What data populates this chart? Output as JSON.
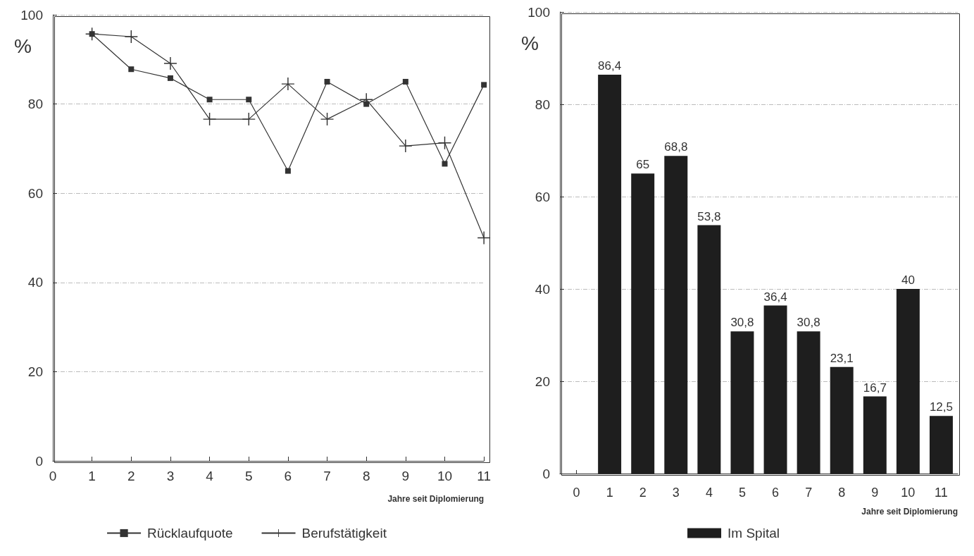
{
  "chart_data": [
    {
      "type": "line",
      "ylabel": "%",
      "xlabel": "Jahre seit Diplomierung",
      "x": [
        1,
        2,
        3,
        4,
        5,
        6,
        7,
        8,
        9,
        10,
        11
      ],
      "series": [
        {
          "name": "Rücklaufquote",
          "color": "#333333",
          "marker": "square",
          "values": [
            95.7,
            87.8,
            85.8,
            81.0,
            81.0,
            65.0,
            85.0,
            80.0,
            85.0,
            66.6,
            84.3
          ]
        },
        {
          "name": "Berufstätigkeit",
          "color": "#333333",
          "marker": "cross",
          "values": [
            95.7,
            95.1,
            89.1,
            76.6,
            76.6,
            84.5,
            76.6,
            81.0,
            70.6,
            71.3,
            50.0
          ]
        }
      ],
      "xlim": [
        0,
        11
      ],
      "xticks": [
        0,
        1,
        2,
        3,
        4,
        5,
        6,
        7,
        8,
        9,
        10,
        11
      ],
      "ylim": [
        0,
        100
      ],
      "yticks": [
        0,
        20,
        40,
        60,
        80,
        100
      ],
      "grid": "y",
      "legend": "bottom",
      "line_style": "solid"
    },
    {
      "type": "bar",
      "ylabel": "%",
      "xlabel": "Jahre seit Diplomierung",
      "categories": [
        "0",
        "1",
        "2",
        "3",
        "4",
        "5",
        "6",
        "7",
        "8",
        "9",
        "10",
        "11"
      ],
      "series": [
        {
          "name": "Im Spital",
          "color": "#1e1e1e",
          "values": [
            null,
            86.4,
            65,
            68.8,
            53.8,
            30.8,
            36.4,
            30.8,
            23.1,
            16.7,
            40,
            12.5
          ],
          "value_labels": [
            null,
            "86,4",
            "65",
            "68,8",
            "53,8",
            "30,8",
            "36,4",
            "30,8",
            "23,1",
            "16,7",
            "40",
            "12,5"
          ]
        }
      ],
      "ylim": [
        0,
        100
      ],
      "yticks": [
        0,
        20,
        40,
        60,
        80,
        100
      ],
      "grid": "y",
      "legend": "bottom"
    }
  ]
}
